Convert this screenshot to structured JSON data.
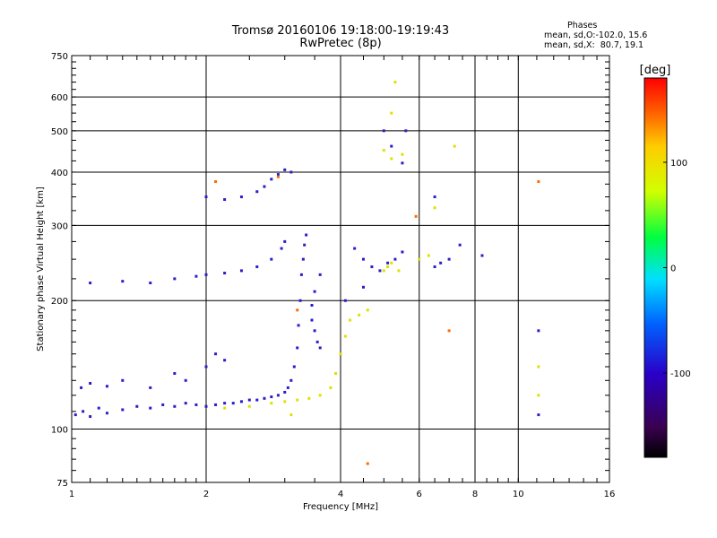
{
  "chart_data": {
    "type": "scatter",
    "title": "Tromsø 20160106 19:18:00-19:19:43",
    "subtitle": "RwPretec (8p)",
    "xlabel": "Frequency [MHz]",
    "ylabel": "Stationary phase Virtual Height [km]",
    "x_scale": "log",
    "y_scale": "log",
    "xlim": [
      1,
      16
    ],
    "ylim": [
      75,
      750
    ],
    "x_ticks": [
      1,
      2,
      4,
      6,
      8,
      10,
      16
    ],
    "y_ticks": [
      75,
      100,
      200,
      300,
      400,
      500,
      600,
      750
    ],
    "grid": true,
    "colorbar": {
      "label": "[deg]",
      "range": [
        -180,
        180
      ],
      "ticks": [
        100,
        0,
        -100
      ],
      "colormap": "rainbow (black→purple→blue→cyan→green→yellow→orange→red)"
    },
    "stats": {
      "heading": "Phases",
      "line1": "mean, sd,O:-102.0, 15.6",
      "line2": "mean, sd,X:  80.7, 19.1"
    },
    "series": [
      {
        "mode": "O",
        "color": "#2a1ec8",
        "points": [
          [
            1.02,
            108
          ],
          [
            1.06,
            110
          ],
          [
            1.1,
            107
          ],
          [
            1.15,
            112
          ],
          [
            1.2,
            109
          ],
          [
            1.3,
            111
          ],
          [
            1.4,
            113
          ],
          [
            1.5,
            112
          ],
          [
            1.6,
            114
          ],
          [
            1.7,
            113
          ],
          [
            1.8,
            115
          ],
          [
            1.9,
            114
          ],
          [
            2.0,
            113
          ],
          [
            2.1,
            114
          ],
          [
            2.2,
            115
          ],
          [
            2.3,
            115
          ],
          [
            2.4,
            116
          ],
          [
            2.5,
            117
          ],
          [
            2.6,
            117
          ],
          [
            2.7,
            118
          ],
          [
            2.8,
            119
          ],
          [
            2.9,
            120
          ],
          [
            3.0,
            122
          ],
          [
            3.05,
            125
          ],
          [
            3.1,
            130
          ],
          [
            3.15,
            140
          ],
          [
            3.2,
            155
          ],
          [
            3.22,
            175
          ],
          [
            3.25,
            200
          ],
          [
            3.27,
            230
          ],
          [
            3.3,
            250
          ],
          [
            3.32,
            270
          ],
          [
            3.35,
            285
          ],
          [
            1.05,
            125
          ],
          [
            1.1,
            128
          ],
          [
            1.2,
            126
          ],
          [
            1.3,
            130
          ],
          [
            1.5,
            125
          ],
          [
            1.7,
            135
          ],
          [
            1.8,
            130
          ],
          [
            2.0,
            140
          ],
          [
            2.1,
            150
          ],
          [
            2.2,
            145
          ],
          [
            1.1,
            220
          ],
          [
            1.3,
            222
          ],
          [
            1.5,
            220
          ],
          [
            1.7,
            225
          ],
          [
            1.9,
            228
          ],
          [
            2.0,
            230
          ],
          [
            2.2,
            232
          ],
          [
            2.4,
            235
          ],
          [
            2.6,
            240
          ],
          [
            2.8,
            250
          ],
          [
            2.95,
            265
          ],
          [
            3.0,
            275
          ],
          [
            2.0,
            350
          ],
          [
            2.2,
            345
          ],
          [
            2.4,
            350
          ],
          [
            2.6,
            360
          ],
          [
            2.7,
            370
          ],
          [
            2.8,
            385
          ],
          [
            2.9,
            395
          ],
          [
            3.0,
            405
          ],
          [
            3.1,
            400
          ],
          [
            3.45,
            180
          ],
          [
            3.5,
            170
          ],
          [
            3.55,
            160
          ],
          [
            3.6,
            155
          ],
          [
            3.45,
            195
          ],
          [
            3.5,
            210
          ],
          [
            3.6,
            230
          ],
          [
            4.3,
            265
          ],
          [
            4.5,
            250
          ],
          [
            4.7,
            240
          ],
          [
            4.9,
            235
          ],
          [
            5.1,
            245
          ],
          [
            5.3,
            250
          ],
          [
            5.5,
            260
          ],
          [
            4.1,
            200
          ],
          [
            4.5,
            215
          ],
          [
            5.0,
            500
          ],
          [
            5.2,
            460
          ],
          [
            5.5,
            420
          ],
          [
            5.6,
            500
          ],
          [
            6.5,
            240
          ],
          [
            6.7,
            245
          ],
          [
            7.0,
            250
          ],
          [
            7.4,
            270
          ],
          [
            8.3,
            255
          ],
          [
            11.1,
            170
          ],
          [
            11.1,
            108
          ],
          [
            6.5,
            350
          ]
        ]
      },
      {
        "mode": "X",
        "color": "#e0e000",
        "points": [
          [
            2.2,
            112
          ],
          [
            2.5,
            113
          ],
          [
            2.8,
            115
          ],
          [
            3.0,
            116
          ],
          [
            3.2,
            117
          ],
          [
            3.4,
            118
          ],
          [
            3.6,
            120
          ],
          [
            3.8,
            125
          ],
          [
            3.9,
            135
          ],
          [
            4.0,
            150
          ],
          [
            4.1,
            165
          ],
          [
            4.2,
            180
          ],
          [
            4.4,
            185
          ],
          [
            4.6,
            190
          ],
          [
            5.0,
            235
          ],
          [
            5.1,
            240
          ],
          [
            5.2,
            245
          ],
          [
            5.4,
            235
          ],
          [
            6.0,
            250
          ],
          [
            6.3,
            255
          ],
          [
            5.0,
            450
          ],
          [
            5.2,
            430
          ],
          [
            5.5,
            440
          ],
          [
            5.3,
            650
          ],
          [
            5.2,
            550
          ],
          [
            6.5,
            330
          ],
          [
            7.2,
            460
          ],
          [
            11.1,
            140
          ],
          [
            11.1,
            120
          ],
          [
            3.1,
            108
          ]
        ]
      },
      {
        "mode": "outliers",
        "color": "#ff6a00",
        "points": [
          [
            4.6,
            83
          ],
          [
            5.9,
            315
          ],
          [
            7.0,
            170
          ],
          [
            2.1,
            380
          ],
          [
            3.2,
            190
          ],
          [
            2.9,
            390
          ],
          [
            11.1,
            380
          ]
        ]
      }
    ]
  }
}
